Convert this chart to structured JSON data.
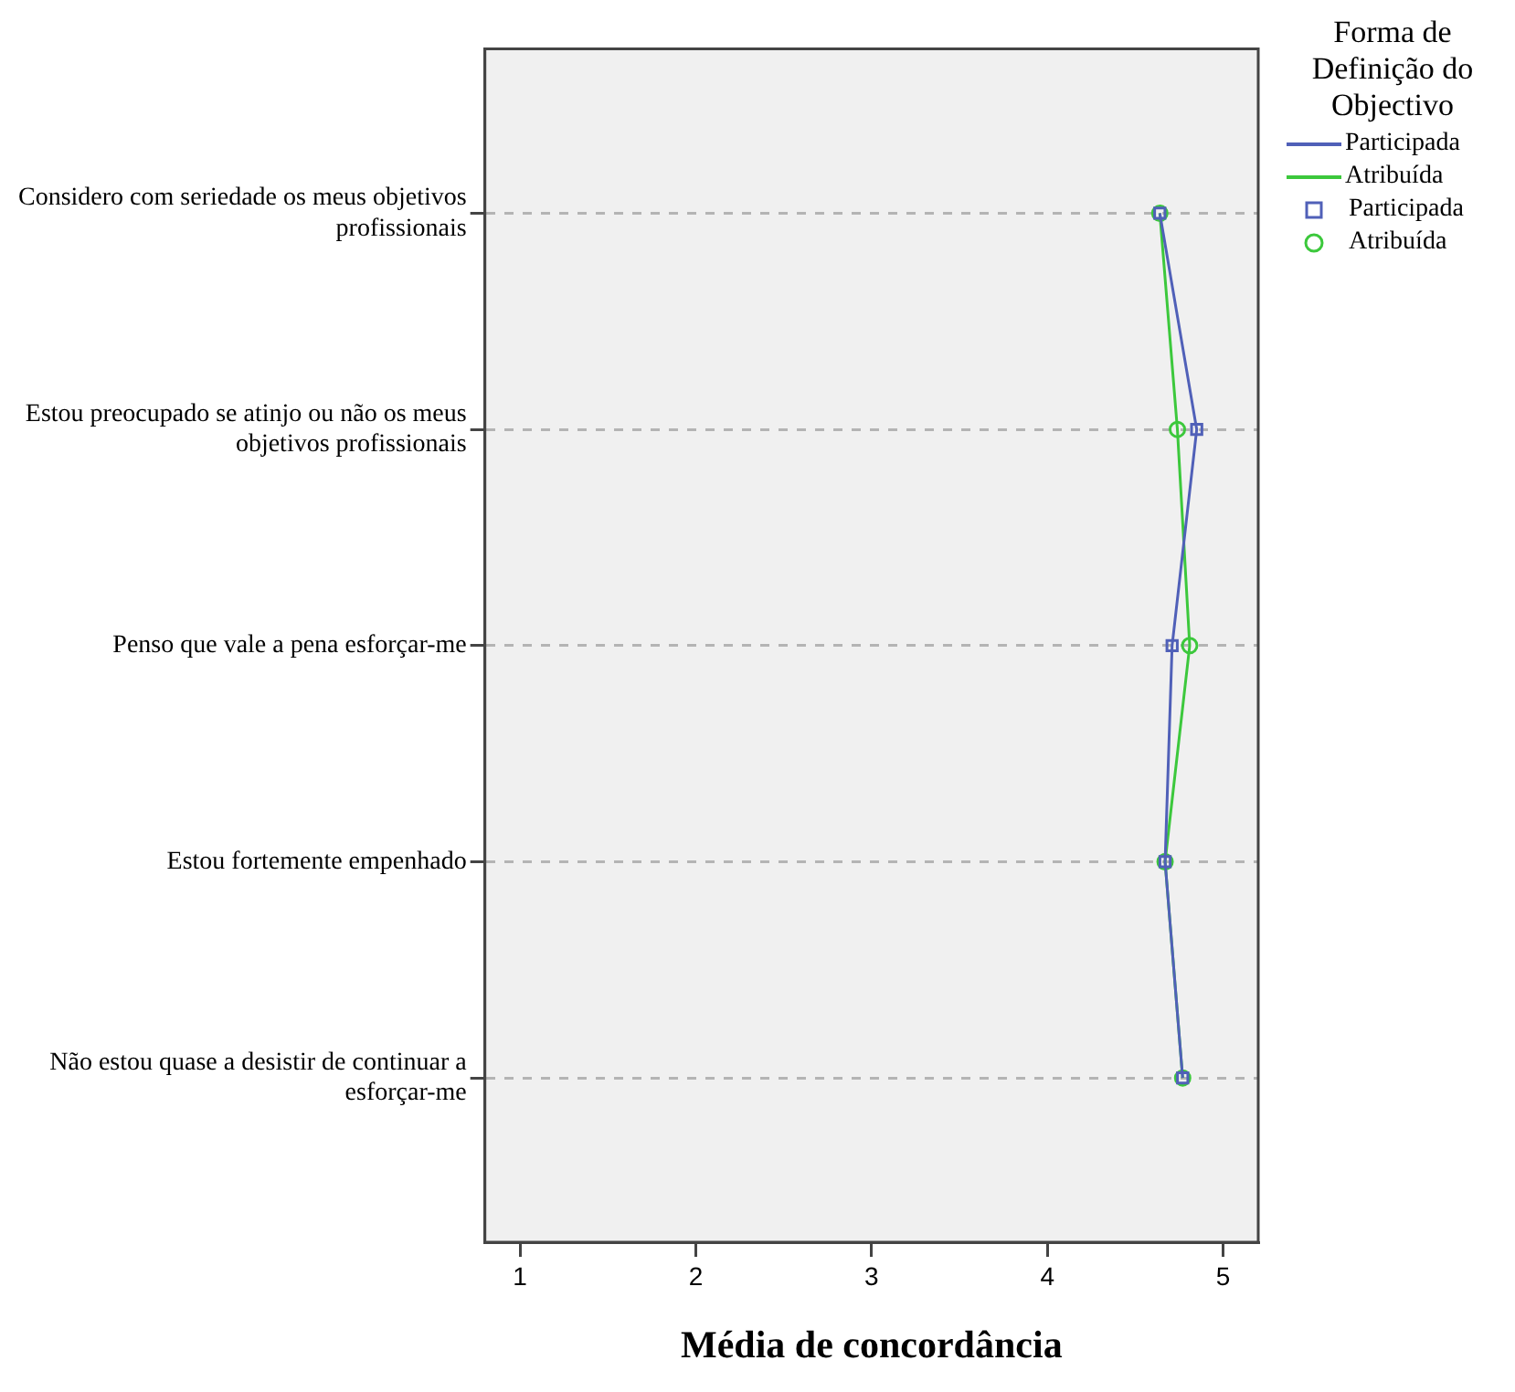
{
  "chart_data": {
    "type": "line",
    "orientation": "horizontal",
    "xlabel": "Média de concordância",
    "legend_title": "Forma de Definição do Objectivo",
    "categories": [
      "Considero com seriedade os meus objetivos profissionais",
      "Estou preocupado se atinjo ou não os meus objetivos profissionais",
      "Penso que vale a pena esforçar-me",
      "Estou fortemente empenhado",
      "Não estou quase a desistir de continuar a esforçar-me"
    ],
    "series": [
      {
        "name": "Participada",
        "color": "#5060b8",
        "marker": "square",
        "values": [
          4.64,
          4.85,
          4.71,
          4.67,
          4.77
        ]
      },
      {
        "name": "Atribuída",
        "color": "#3cc83c",
        "marker": "circle",
        "values": [
          4.64,
          4.74,
          4.81,
          4.67,
          4.77
        ]
      }
    ],
    "xlim": [
      0.8,
      5.2
    ],
    "xticks": [
      1,
      2,
      3,
      4,
      5
    ],
    "grid": "y",
    "legend": "top right",
    "line_style": "solid"
  }
}
